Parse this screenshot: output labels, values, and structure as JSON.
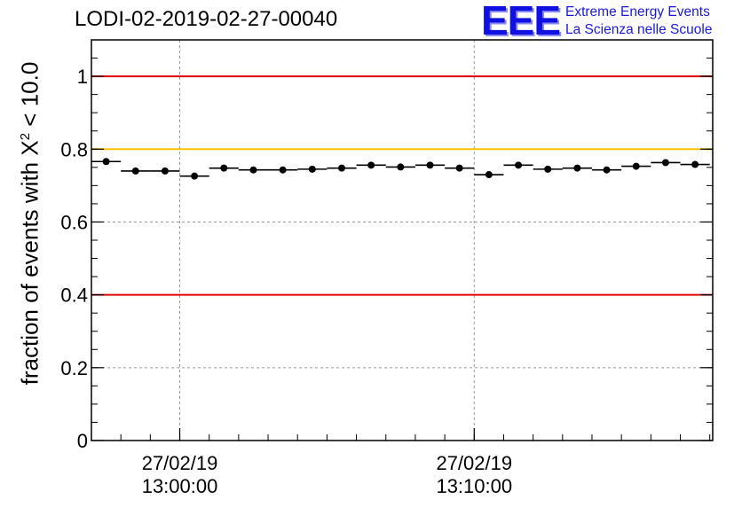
{
  "header": {
    "title": "LODI-02-2019-02-27-00040",
    "logo_mark": "EEE",
    "logo_line1": "Extreme Energy Events",
    "logo_line2": "La Scienza nelle Scuole"
  },
  "chart_data": {
    "type": "scatter",
    "title": "LODI-02-2019-02-27-00040",
    "ylabel_prefix": "fraction of events with",
    "ylabel_symbol": "X",
    "ylabel_sup": "2",
    "ylabel_suffix": "< 10.0",
    "ylim": [
      0,
      1.1
    ],
    "xlim_minutes": [
      -3.0,
      18.1
    ],
    "grid": true,
    "y_ticks": [
      0,
      0.2,
      0.4,
      0.6,
      0.8,
      1
    ],
    "y_tick_labels": [
      "0",
      "0.2",
      "0.4",
      "0.6",
      "0.8",
      "1"
    ],
    "x_ticks": [
      {
        "minute": 0,
        "date": "27/02/19",
        "time": "13:00:00"
      },
      {
        "minute": 10,
        "date": "27/02/19",
        "time": "13:10:00"
      }
    ],
    "minor_tick_step_minutes": 1,
    "reference_lines": [
      {
        "value": 1.0,
        "color": "#e00000"
      },
      {
        "value": 0.8,
        "color": "#ffc000"
      },
      {
        "value": 0.4,
        "color": "#e00000"
      }
    ],
    "bin_width_minutes": 1.0,
    "x": [
      -2.5,
      -1.5,
      -0.5,
      0.5,
      1.5,
      2.5,
      3.5,
      4.5,
      5.5,
      6.5,
      7.5,
      8.5,
      9.5,
      10.5,
      11.5,
      12.5,
      13.5,
      14.5,
      15.5,
      16.5,
      17.5
    ],
    "values": [
      0.766,
      0.74,
      0.74,
      0.726,
      0.748,
      0.743,
      0.743,
      0.745,
      0.748,
      0.756,
      0.751,
      0.756,
      0.748,
      0.73,
      0.756,
      0.745,
      0.748,
      0.743,
      0.753,
      0.763,
      0.758
    ]
  }
}
